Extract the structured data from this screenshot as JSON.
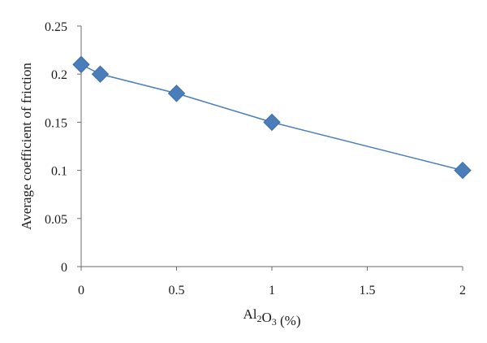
{
  "chart_data": {
    "type": "line",
    "title": "",
    "xlabel": {
      "parts": [
        {
          "text": "Al",
          "sub": false
        },
        {
          "text": "2",
          "sub": true
        },
        {
          "text": "O",
          "sub": false
        },
        {
          "text": "3",
          "sub": true
        },
        {
          "text": " (%)",
          "sub": false
        }
      ]
    },
    "ylabel": "Average coefficient of friction",
    "xlim": [
      0,
      2
    ],
    "ylim": [
      0,
      0.25
    ],
    "x_ticks": [
      "0",
      "0.5",
      "1",
      "1.5",
      "2"
    ],
    "y_ticks": [
      "0",
      "0.05",
      "0.1",
      "0.15",
      "0.2",
      "0.25"
    ],
    "grid": false,
    "legend": false,
    "series": [
      {
        "color": "#4a7ebb",
        "marker": "diamond",
        "x": [
          0,
          0.1,
          0.5,
          1,
          2
        ],
        "y": [
          0.21,
          0.2,
          0.18,
          0.15,
          0.1
        ]
      }
    ]
  }
}
